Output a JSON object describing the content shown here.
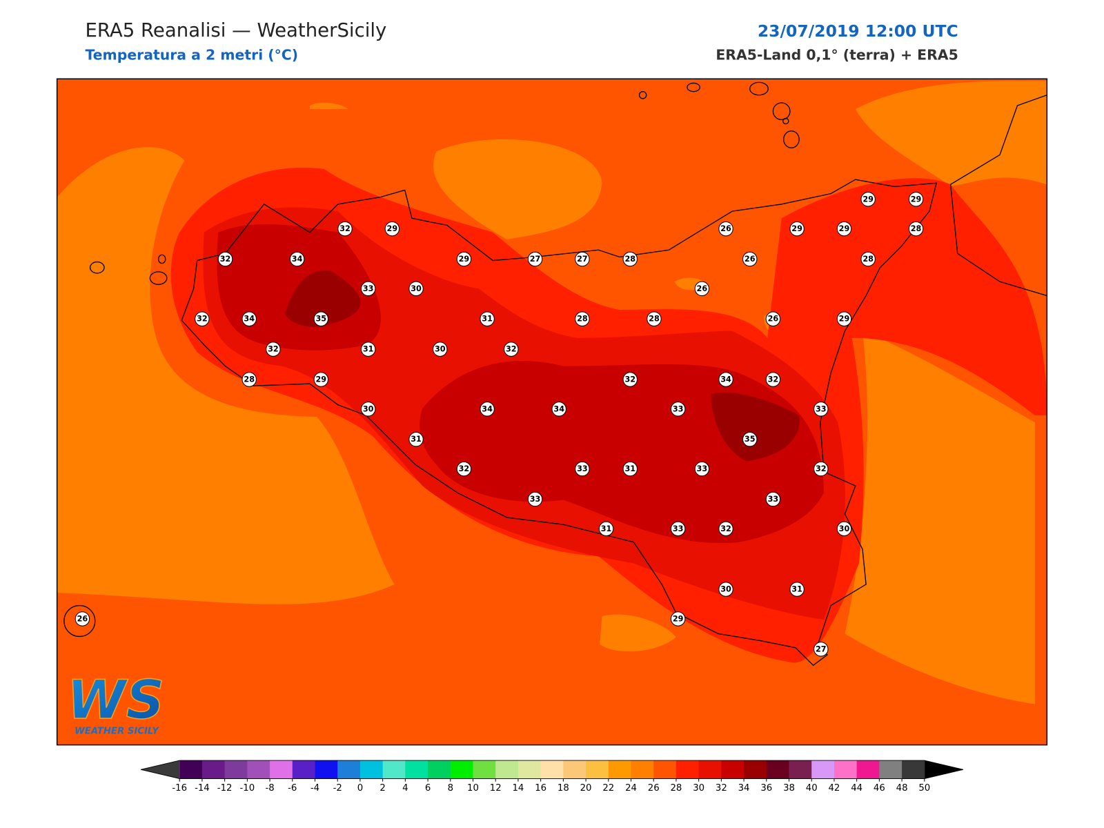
{
  "header": {
    "title": "ERA5 Reanalisi — WeatherSicily",
    "subtitle": "Temperatura a 2 metri (°C)",
    "date": "23/07/2019 12:00 UTC",
    "source": "ERA5-Land 0,1° (terra) + ERA5"
  },
  "stations": [
    32,
    29,
    32,
    34,
    29,
    27,
    27,
    28,
    26,
    29,
    29,
    29,
    29,
    28,
    26,
    28,
    33,
    30,
    26,
    32,
    34,
    35,
    31,
    28,
    28,
    26,
    29,
    32,
    31,
    30,
    32,
    28,
    29,
    32,
    34,
    32,
    30,
    34,
    34,
    33,
    33,
    35,
    31,
    32,
    33,
    31,
    33,
    32,
    33,
    33,
    31,
    33,
    32,
    30,
    30,
    31,
    29,
    27,
    26
  ],
  "colorbar": {
    "ticks": [
      -16,
      -14,
      -12,
      -10,
      -8,
      -6,
      -4,
      -2,
      0,
      2,
      4,
      6,
      8,
      10,
      12,
      14,
      16,
      18,
      20,
      22,
      24,
      26,
      28,
      30,
      32,
      34,
      36,
      38,
      40,
      42,
      44,
      46,
      48,
      50
    ],
    "colors": [
      "#430057",
      "#6a1b8a",
      "#7f3a9e",
      "#a050b8",
      "#e070e8",
      "#5a20c8",
      "#1010f0",
      "#1e7fd8",
      "#00c0e0",
      "#50e8c8",
      "#00e0a0",
      "#00d060",
      "#00ee00",
      "#70e040",
      "#c0e890",
      "#e0e8a0",
      "#ffe0a8",
      "#fcc878",
      "#fcc040",
      "#ff9900",
      "#ff7f00",
      "#ff5500",
      "#ff2000",
      "#e81000",
      "#c80000",
      "#9a0000",
      "#6a0020",
      "#7a2050",
      "#d898f8",
      "#ff70c8",
      "#f01890",
      "#808080",
      "#383838"
    ],
    "under_color": "#3a3a3a",
    "over_color": "#000000"
  },
  "logo": {
    "mark": "WS",
    "name": "WEATHER SICILY"
  }
}
